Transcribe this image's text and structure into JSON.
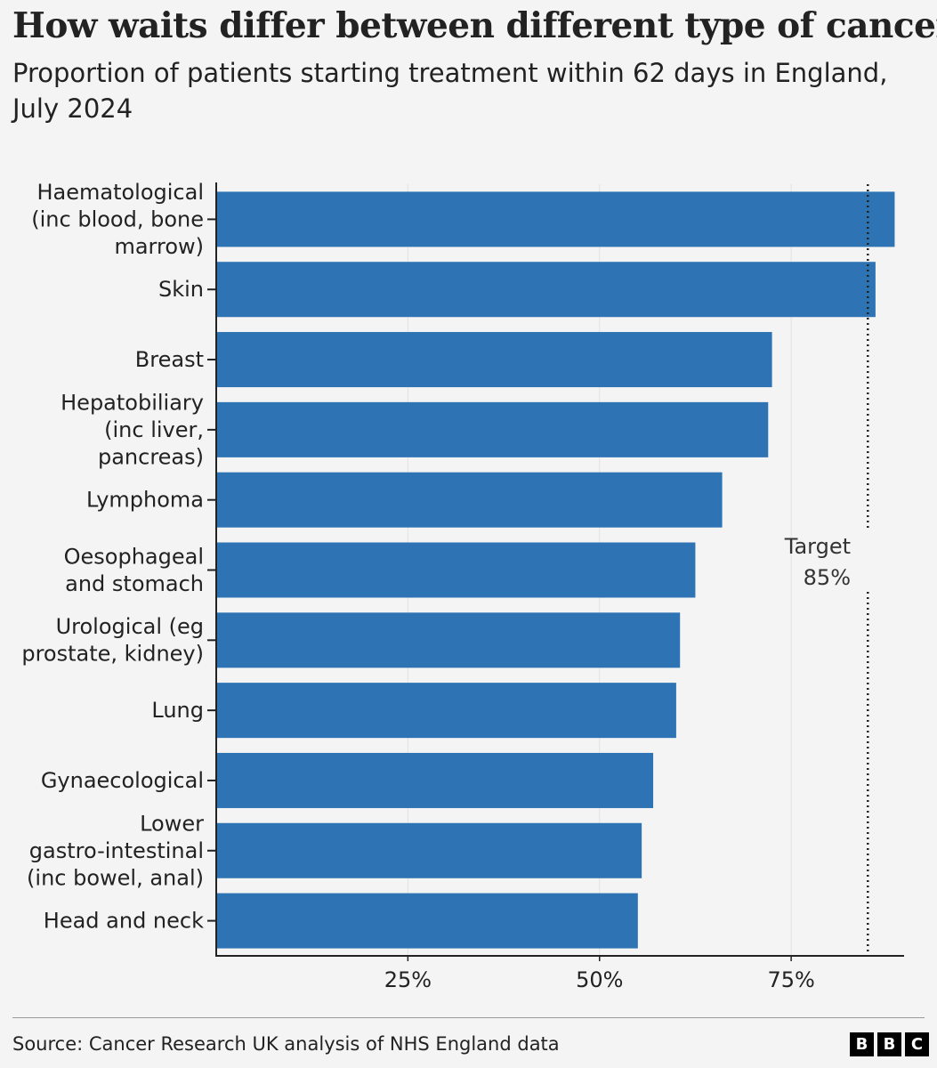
{
  "header": {
    "title": "How waits differ between different type of cancer",
    "subtitle": "Proportion of patients starting treatment within 62 days in England, July 2024"
  },
  "chart_data": {
    "type": "bar",
    "orientation": "horizontal",
    "categories": [
      [
        "Haematological",
        "(inc blood, bone",
        "marrow)"
      ],
      [
        "Skin"
      ],
      [
        "Breast"
      ],
      [
        "Hepatobiliary",
        "(inc liver,",
        "pancreas)"
      ],
      [
        "Lymphoma"
      ],
      [
        "Oesophageal",
        "and stomach"
      ],
      [
        "Urological (eg",
        "prostate, kidney)"
      ],
      [
        "Lung"
      ],
      [
        "Gynaecological"
      ],
      [
        "Lower",
        "gastro-intestinal",
        "(inc bowel, anal)"
      ],
      [
        "Head and neck"
      ]
    ],
    "values": [
      88.5,
      86,
      72.5,
      72,
      66,
      62.5,
      60.5,
      60,
      57,
      55.5,
      55
    ],
    "xlim": [
      0,
      90
    ],
    "xticks": [
      25,
      50,
      75
    ],
    "xtick_labels": [
      "25%",
      "50%",
      "75%"
    ],
    "reference_line": {
      "value": 85,
      "label_lines": [
        "Target",
        "85%"
      ],
      "style": "dotted"
    },
    "bar_color": "#2e73b3",
    "grid": "vertical",
    "legend": "none"
  },
  "footer": {
    "source": "Source: Cancer Research UK analysis of NHS England data",
    "logo_letters": [
      "B",
      "B",
      "C"
    ]
  }
}
